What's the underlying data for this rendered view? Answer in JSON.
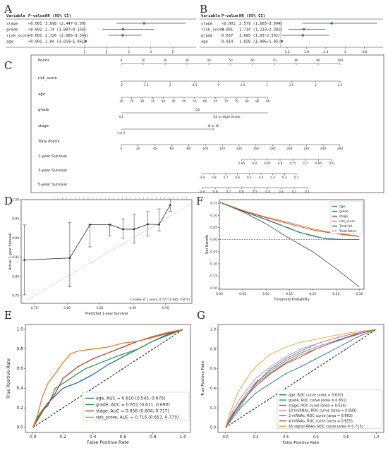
{
  "panel_letters": [
    "A",
    "B",
    "C",
    "D",
    "F",
    "E",
    "G"
  ],
  "chart_data": [
    {
      "type": "forest",
      "panel": "A",
      "headers": [
        "Variable",
        "P-value",
        "HR (95% CI)"
      ],
      "rows": [
        {
          "label": "stage",
          "p": "<0.001",
          "hr_text": "3.698 (2.447~5.59)",
          "hr": 3.698,
          "lo": 2.447,
          "hi": 5.59
        },
        {
          "label": "grade",
          "p": "<0.001",
          "hr_text": "2.74 (1.807~4.156)",
          "hr": 2.74,
          "lo": 1.807,
          "hi": 4.156
        },
        {
          "label": "risk_score",
          "p": "<0.001",
          "hr_text": "2.726 (2.085~3.566)",
          "hr": 2.726,
          "lo": 2.085,
          "hi": 3.566
        },
        {
          "label": "age",
          "p": "<0.001",
          "hr_text": "1.04 (1.019~1.061)",
          "hr": 1.04,
          "lo": 1.019,
          "hi": 1.061
        }
      ],
      "ticks": [
        1,
        2,
        3,
        4,
        5
      ],
      "xlim": [
        1,
        5.8
      ]
    },
    {
      "type": "forest",
      "panel": "B",
      "headers": [
        "Variable",
        "P-value",
        "HR (95% CI)"
      ],
      "rows": [
        {
          "label": "stage",
          "p": "<0.001",
          "hr_text": "2.579 (1.665~3.994)",
          "hr": 2.579,
          "lo": 1.665,
          "hi": 3.994
        },
        {
          "label": "risk_score",
          "p": "0.001",
          "hr_text": "1.714 (1.233~2.382)",
          "hr": 1.714,
          "lo": 1.233,
          "hi": 2.382
        },
        {
          "label": "grade",
          "p": "0.037",
          "hr_text": "1.685 (1.03~2.502)",
          "hr": 1.685,
          "lo": 1.03,
          "hi": 2.502
        },
        {
          "label": "age",
          "p": "0.014",
          "hr_text": "1.028 (1.006~1.05)",
          "hr": 1.028,
          "lo": 1.006,
          "hi": 1.05
        }
      ],
      "ticks": [
        1.2,
        1.8,
        2.4,
        3.0,
        3.6
      ],
      "xlim": [
        1.0,
        4.0
      ]
    },
    {
      "type": "nomogram",
      "panel": "C",
      "rows": [
        {
          "label": "Points",
          "ticks": [
            "0",
            "10",
            "20",
            "30",
            "40",
            "50",
            "60",
            "70",
            "80",
            "90",
            "100"
          ]
        },
        {
          "label": "risk_score",
          "ticks": [
            "-2",
            "-1.5",
            "-1",
            "-0.5",
            "0",
            "0.5",
            "1",
            "1.5",
            "2",
            "2.5"
          ]
        },
        {
          "label": "age",
          "ticks": [
            "20",
            "25",
            "30",
            "35",
            "40",
            "45",
            "50",
            "55",
            "60",
            "65",
            "70",
            "75",
            "80",
            "85",
            "90"
          ]
        },
        {
          "label": "grade",
          "ticks": [
            "G1",
            "G2",
            "G3 or High Grade"
          ]
        },
        {
          "label": "stage",
          "ticks": [
            "I or II",
            "III or IV"
          ]
        },
        {
          "label": "Total Points",
          "ticks": [
            "0",
            "20",
            "40",
            "60",
            "80",
            "100",
            "120",
            "140",
            "160",
            "180",
            "200",
            "220",
            "240",
            "260"
          ]
        },
        {
          "label": "1-year Survival",
          "ticks": [
            "0.95",
            "0.9",
            "0.85",
            "0.8",
            "0.75",
            "0.7",
            "0.65",
            "0.6"
          ]
        },
        {
          "label": "3-year Survival",
          "ticks": [
            "0.9",
            "0.8",
            "0.7",
            "0.6",
            "0.5",
            "0.4",
            "0.3",
            "0.2",
            "0.1"
          ]
        },
        {
          "label": "5-year Survival",
          "ticks": [
            "0.9",
            "0.8",
            "0.7",
            "0.6",
            "0.5",
            "0.4",
            "0.3",
            "0.2",
            "0.1"
          ]
        }
      ]
    },
    {
      "type": "line",
      "panel": "D",
      "xlabel": "Predicted 1-year Survival",
      "ylabel": "Actual 1-year Survival",
      "annotation": "C-index at 1 years: 0.777 (0.685, 0.870)",
      "xlim": [
        0.73,
        0.99
      ],
      "ylim": [
        0.73,
        1.0
      ],
      "xticks": [
        "0.75",
        "0.80",
        "0.85",
        "0.90",
        "0.95"
      ],
      "xtick_values": [
        0.75,
        0.8,
        0.85,
        0.9,
        0.95
      ],
      "yticks": [
        "0.75",
        "0.80",
        "0.85",
        "0.90",
        "0.95",
        "1.00"
      ],
      "ytick_values": [
        0.75,
        0.8,
        0.85,
        0.9,
        0.95,
        1.0
      ],
      "points": [
        {
          "x": 0.735,
          "y": 0.843,
          "lo": 0.752,
          "hi": 0.934
        },
        {
          "x": 0.804,
          "y": 0.848,
          "lo": 0.773,
          "hi": 0.941
        },
        {
          "x": 0.835,
          "y": 0.935,
          "lo": 0.877,
          "hi": 0.935
        },
        {
          "x": 0.865,
          "y": 0.935,
          "lo": 0.905,
          "hi": 0.935
        },
        {
          "x": 0.885,
          "y": 0.923,
          "lo": 0.9,
          "hi": 0.95
        },
        {
          "x": 0.902,
          "y": 0.923,
          "lo": 0.887,
          "hi": 0.962
        },
        {
          "x": 0.923,
          "y": 0.936,
          "lo": 0.905,
          "hi": 0.969
        },
        {
          "x": 0.94,
          "y": 0.935,
          "lo": 0.918,
          "hi": 0.976
        },
        {
          "x": 0.957,
          "y": 0.986,
          "lo": 0.97,
          "hi": 1.0
        }
      ]
    },
    {
      "type": "line",
      "panel": "F",
      "xlabel": "Threshold Probability",
      "ylabel": "Net Benefit",
      "xlim": [
        0,
        0.31
      ],
      "ylim": [
        -0.205,
        0.165
      ],
      "xticks": [
        "0.00",
        "0.05",
        "0.10",
        "0.15",
        "0.20",
        "0.25",
        "0.30"
      ],
      "xtick_values": [
        0,
        0.05,
        0.1,
        0.15,
        0.2,
        0.25,
        0.3
      ],
      "yticks": [
        "0.15",
        "0.10",
        "0.05",
        "0.00",
        "-0.05",
        "-0.10",
        "-0.15",
        "-0.20"
      ],
      "ytick_values": [
        0.15,
        0.1,
        0.05,
        0,
        -0.05,
        -0.1,
        -0.15,
        -0.2
      ],
      "legend": "top-right",
      "series": [
        {
          "name": "age",
          "color": "#2f9a52",
          "x": [
            0,
            0.05,
            0.1,
            0.13,
            0.15,
            0.17,
            0.19,
            0.21,
            0.23,
            0.25,
            0.27,
            0.3
          ],
          "y": [
            0.155,
            0.117,
            0.082,
            0.06,
            0.048,
            0.03,
            0.022,
            0.012,
            0.002,
            0,
            0,
            0
          ]
        },
        {
          "name": "grade",
          "color": "#1f6bb0",
          "x": [
            0,
            0.05,
            0.1,
            0.13,
            0.15,
            0.17,
            0.19,
            0.21,
            0.23,
            0.25,
            0.27,
            0.3
          ],
          "y": [
            0.155,
            0.118,
            0.083,
            0.062,
            0.045,
            0.032,
            0.02,
            0.01,
            0.005,
            0.002,
            0,
            0
          ]
        },
        {
          "name": "stage",
          "color": "#c0392b",
          "x": [
            0,
            0.05,
            0.1,
            0.15,
            0.18,
            0.2,
            0.23,
            0.26,
            0.29,
            0.3
          ],
          "y": [
            0.155,
            0.12,
            0.09,
            0.065,
            0.05,
            0.04,
            0.03,
            0.022,
            0.015,
            0.012
          ]
        },
        {
          "name": "risk_score",
          "color": "#e67e22",
          "x": [
            0,
            0.05,
            0.1,
            0.15,
            0.18,
            0.2,
            0.23,
            0.26,
            0.29,
            0.3
          ],
          "y": [
            0.155,
            0.121,
            0.093,
            0.07,
            0.055,
            0.045,
            0.033,
            0.025,
            0.017,
            0.013
          ]
        },
        {
          "name": "Treat-All",
          "color": "#555555",
          "x": [
            0,
            0.05,
            0.1,
            0.15,
            0.2,
            0.25,
            0.3
          ],
          "y": [
            0.155,
            0.115,
            0.065,
            0.005,
            -0.05,
            -0.12,
            -0.195
          ]
        },
        {
          "name": "Treat-None",
          "color": "#888888",
          "x": [
            0,
            0.3
          ],
          "y": [
            0,
            0
          ]
        }
      ]
    },
    {
      "type": "line",
      "panel": "E",
      "xlabel": "False Positive Rate",
      "ylabel": "True Positive Rate",
      "xlim": [
        -0.05,
        1.05
      ],
      "ylim": [
        -0.05,
        1.05
      ],
      "xticks": [
        "0.0",
        "0.2",
        "0.4",
        "0.6",
        "0.8",
        "1.0"
      ],
      "xtick_values": [
        0,
        0.2,
        0.4,
        0.6,
        0.8,
        1.0
      ],
      "yticks": [
        "0.0",
        "0.2",
        "0.4",
        "0.6",
        "0.8",
        "1.0"
      ],
      "ytick_values": [
        0,
        0.2,
        0.4,
        0.6,
        0.8,
        1.0
      ],
      "legend": "bottom-right",
      "series": [
        {
          "name": "age, AUC = 0.610 (0.545, 0.675)",
          "color": "#1f6bb0",
          "x": [
            0,
            0.02,
            0.05,
            0.1,
            0.2,
            0.3,
            0.4,
            0.5,
            0.6,
            0.7,
            0.8,
            0.9,
            1.0
          ],
          "y": [
            0,
            0.08,
            0.15,
            0.25,
            0.4,
            0.46,
            0.54,
            0.64,
            0.72,
            0.8,
            0.88,
            0.95,
            1.0
          ]
        },
        {
          "name": "grade, AUC = 0.651 (0.611, 0.690)",
          "color": "#2f9a52",
          "x": [
            0,
            0.02,
            0.06,
            0.1,
            0.15,
            0.35,
            0.55,
            0.7,
            0.8,
            1.0
          ],
          "y": [
            0,
            0.06,
            0.17,
            0.22,
            0.4,
            0.6,
            0.72,
            0.8,
            0.88,
            1.0
          ]
        },
        {
          "name": "stage, AUC = 0.656 (0.604, 0.717)",
          "color": "#c0392b",
          "x": [
            0,
            0.08,
            0.15,
            0.2,
            0.3,
            0.4,
            0.5,
            0.6,
            0.7,
            0.8,
            0.9,
            1.0
          ],
          "y": [
            0,
            0.2,
            0.35,
            0.5,
            0.62,
            0.7,
            0.76,
            0.82,
            0.88,
            0.92,
            0.96,
            1.0
          ]
        },
        {
          "name": "risk_score, AUC = 0.715 (0.657, 0.773)",
          "color": "#e67e22",
          "x": [
            0,
            0.03,
            0.06,
            0.1,
            0.15,
            0.2,
            0.25,
            0.3,
            0.4,
            0.5,
            0.6,
            0.7,
            0.8,
            0.9,
            1.0
          ],
          "y": [
            0,
            0.12,
            0.3,
            0.45,
            0.55,
            0.66,
            0.75,
            0.78,
            0.8,
            0.82,
            0.86,
            0.88,
            0.93,
            0.97,
            1.0
          ]
        }
      ]
    },
    {
      "type": "line",
      "panel": "G",
      "xlabel": "False Positive Rate",
      "ylabel": "True Positive Rate",
      "xlim": [
        -0.05,
        1.05
      ],
      "ylim": [
        -0.05,
        1.05
      ],
      "xticks": [
        "0.0",
        "0.2",
        "0.4",
        "0.6",
        "0.8",
        "1.0"
      ],
      "xtick_values": [
        0,
        0.2,
        0.4,
        0.6,
        0.8,
        1.0
      ],
      "yticks": [
        "0.0",
        "0.2",
        "0.4",
        "0.6",
        "0.8",
        "1.0"
      ],
      "ytick_values": [
        0,
        0.2,
        0.4,
        0.6,
        0.8,
        1.0
      ],
      "legend": "bottom-right",
      "series": [
        {
          "name": "age, ROC curve (area = 0.610)",
          "color": "#1f6bb0",
          "x": [
            0,
            0.05,
            0.1,
            0.2,
            0.3,
            0.4,
            0.5,
            0.6,
            0.7,
            0.8,
            0.9,
            1.0
          ],
          "y": [
            0,
            0.1,
            0.2,
            0.35,
            0.45,
            0.55,
            0.62,
            0.7,
            0.78,
            0.86,
            0.94,
            1.0
          ]
        },
        {
          "name": "grade, ROC curve (area = 0.651)",
          "color": "#2f9a52",
          "x": [
            0,
            0.05,
            0.1,
            0.2,
            0.3,
            0.4,
            0.5,
            0.6,
            0.7,
            0.8,
            1.0
          ],
          "y": [
            0,
            0.12,
            0.22,
            0.45,
            0.6,
            0.7,
            0.78,
            0.85,
            0.9,
            0.94,
            1.0
          ]
        },
        {
          "name": "stage, ROC curve (area = 0.656)",
          "color": "#c0392b",
          "x": [
            0,
            0.05,
            0.1,
            0.2,
            0.3,
            0.4,
            0.5,
            0.6,
            0.7,
            0.8,
            0.9,
            1.0
          ],
          "y": [
            0,
            0.15,
            0.25,
            0.42,
            0.55,
            0.65,
            0.72,
            0.8,
            0.86,
            0.92,
            0.97,
            1.0
          ]
        },
        {
          "name": "10 lncRNAs, ROC curve (area = 0.693)",
          "color": "#c77cc9",
          "x": [
            0,
            0.05,
            0.1,
            0.2,
            0.3,
            0.4,
            0.5,
            0.6,
            0.7,
            0.8,
            0.9,
            1.0
          ],
          "y": [
            0,
            0.18,
            0.3,
            0.5,
            0.62,
            0.72,
            0.8,
            0.85,
            0.9,
            0.94,
            0.97,
            1.0
          ]
        },
        {
          "name": "2 mRNAs, ROC curve (area = 0.663)",
          "color": "#7f5fa8",
          "x": [
            0,
            0.05,
            0.1,
            0.2,
            0.3,
            0.4,
            0.5,
            0.6,
            0.7,
            0.8,
            0.9,
            1.0
          ],
          "y": [
            0,
            0.14,
            0.26,
            0.46,
            0.58,
            0.68,
            0.76,
            0.82,
            0.87,
            0.92,
            0.96,
            1.0
          ]
        },
        {
          "name": "4 mRNAs, ROC curve (area = 0.655)",
          "color": "#8c6d46",
          "x": [
            0,
            0.05,
            0.1,
            0.2,
            0.3,
            0.4,
            0.5,
            0.6,
            0.7,
            0.8,
            0.9,
            1.0
          ],
          "y": [
            0,
            0.13,
            0.24,
            0.44,
            0.56,
            0.66,
            0.74,
            0.8,
            0.86,
            0.91,
            0.96,
            1.0
          ]
        },
        {
          "name": "16 signal RNAs, ROC curve (area = 0.715)",
          "color": "#e8a317",
          "x": [
            0,
            0.03,
            0.08,
            0.15,
            0.2,
            0.3,
            0.4,
            0.5,
            0.6,
            0.7,
            0.8,
            0.9,
            1.0
          ],
          "y": [
            0,
            0.15,
            0.35,
            0.52,
            0.62,
            0.75,
            0.82,
            0.87,
            0.9,
            0.93,
            0.96,
            0.98,
            1.0
          ]
        }
      ]
    }
  ]
}
